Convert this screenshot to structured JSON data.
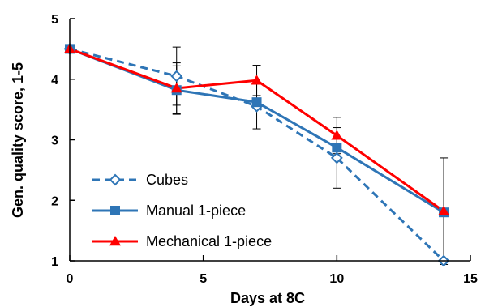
{
  "chart_data": {
    "type": "line",
    "xlabel": "Days at 8C",
    "ylabel": "Gen. quality score, 1-5",
    "xlim": [
      0,
      15
    ],
    "ylim": [
      1,
      5
    ],
    "xticks": [
      0,
      5,
      10,
      15
    ],
    "yticks": [
      1,
      2,
      3,
      4,
      5
    ],
    "grid": false,
    "legend_position": "bottom-left",
    "series": [
      {
        "name": "Cubes",
        "color": "#2E75B6",
        "line_style": "dashed",
        "marker": "open-diamond",
        "points": [
          {
            "x": 0,
            "y": 4.5,
            "err": null
          },
          {
            "x": 4,
            "y": 4.05,
            "err": 0.48
          },
          {
            "x": 7,
            "y": 3.55,
            "err": 0.37
          },
          {
            "x": 10,
            "y": 2.7,
            "err": 0.5
          },
          {
            "x": 14,
            "y": 1.0,
            "err": null
          }
        ]
      },
      {
        "name": "Manual 1-piece",
        "color": "#2E75B6",
        "line_style": "solid",
        "marker": "filled-square",
        "points": [
          {
            "x": 0,
            "y": 4.5,
            "err": null
          },
          {
            "x": 4,
            "y": 3.82,
            "err": 0.4
          },
          {
            "x": 7,
            "y": 3.62,
            "err": null
          },
          {
            "x": 10,
            "y": 2.87,
            "err": null
          },
          {
            "x": 14,
            "y": 1.8,
            "err": null
          }
        ]
      },
      {
        "name": "Mechanical 1-piece",
        "color": "#FF0000",
        "line_style": "solid",
        "marker": "filled-triangle",
        "points": [
          {
            "x": 0,
            "y": 4.5,
            "err": null
          },
          {
            "x": 4,
            "y": 3.85,
            "err": 0.42
          },
          {
            "x": 7,
            "y": 3.98,
            "err": 0.25
          },
          {
            "x": 10,
            "y": 3.07,
            "err": 0.3
          },
          {
            "x": 14,
            "y": 1.82,
            "err": 0.88
          }
        ]
      }
    ]
  }
}
